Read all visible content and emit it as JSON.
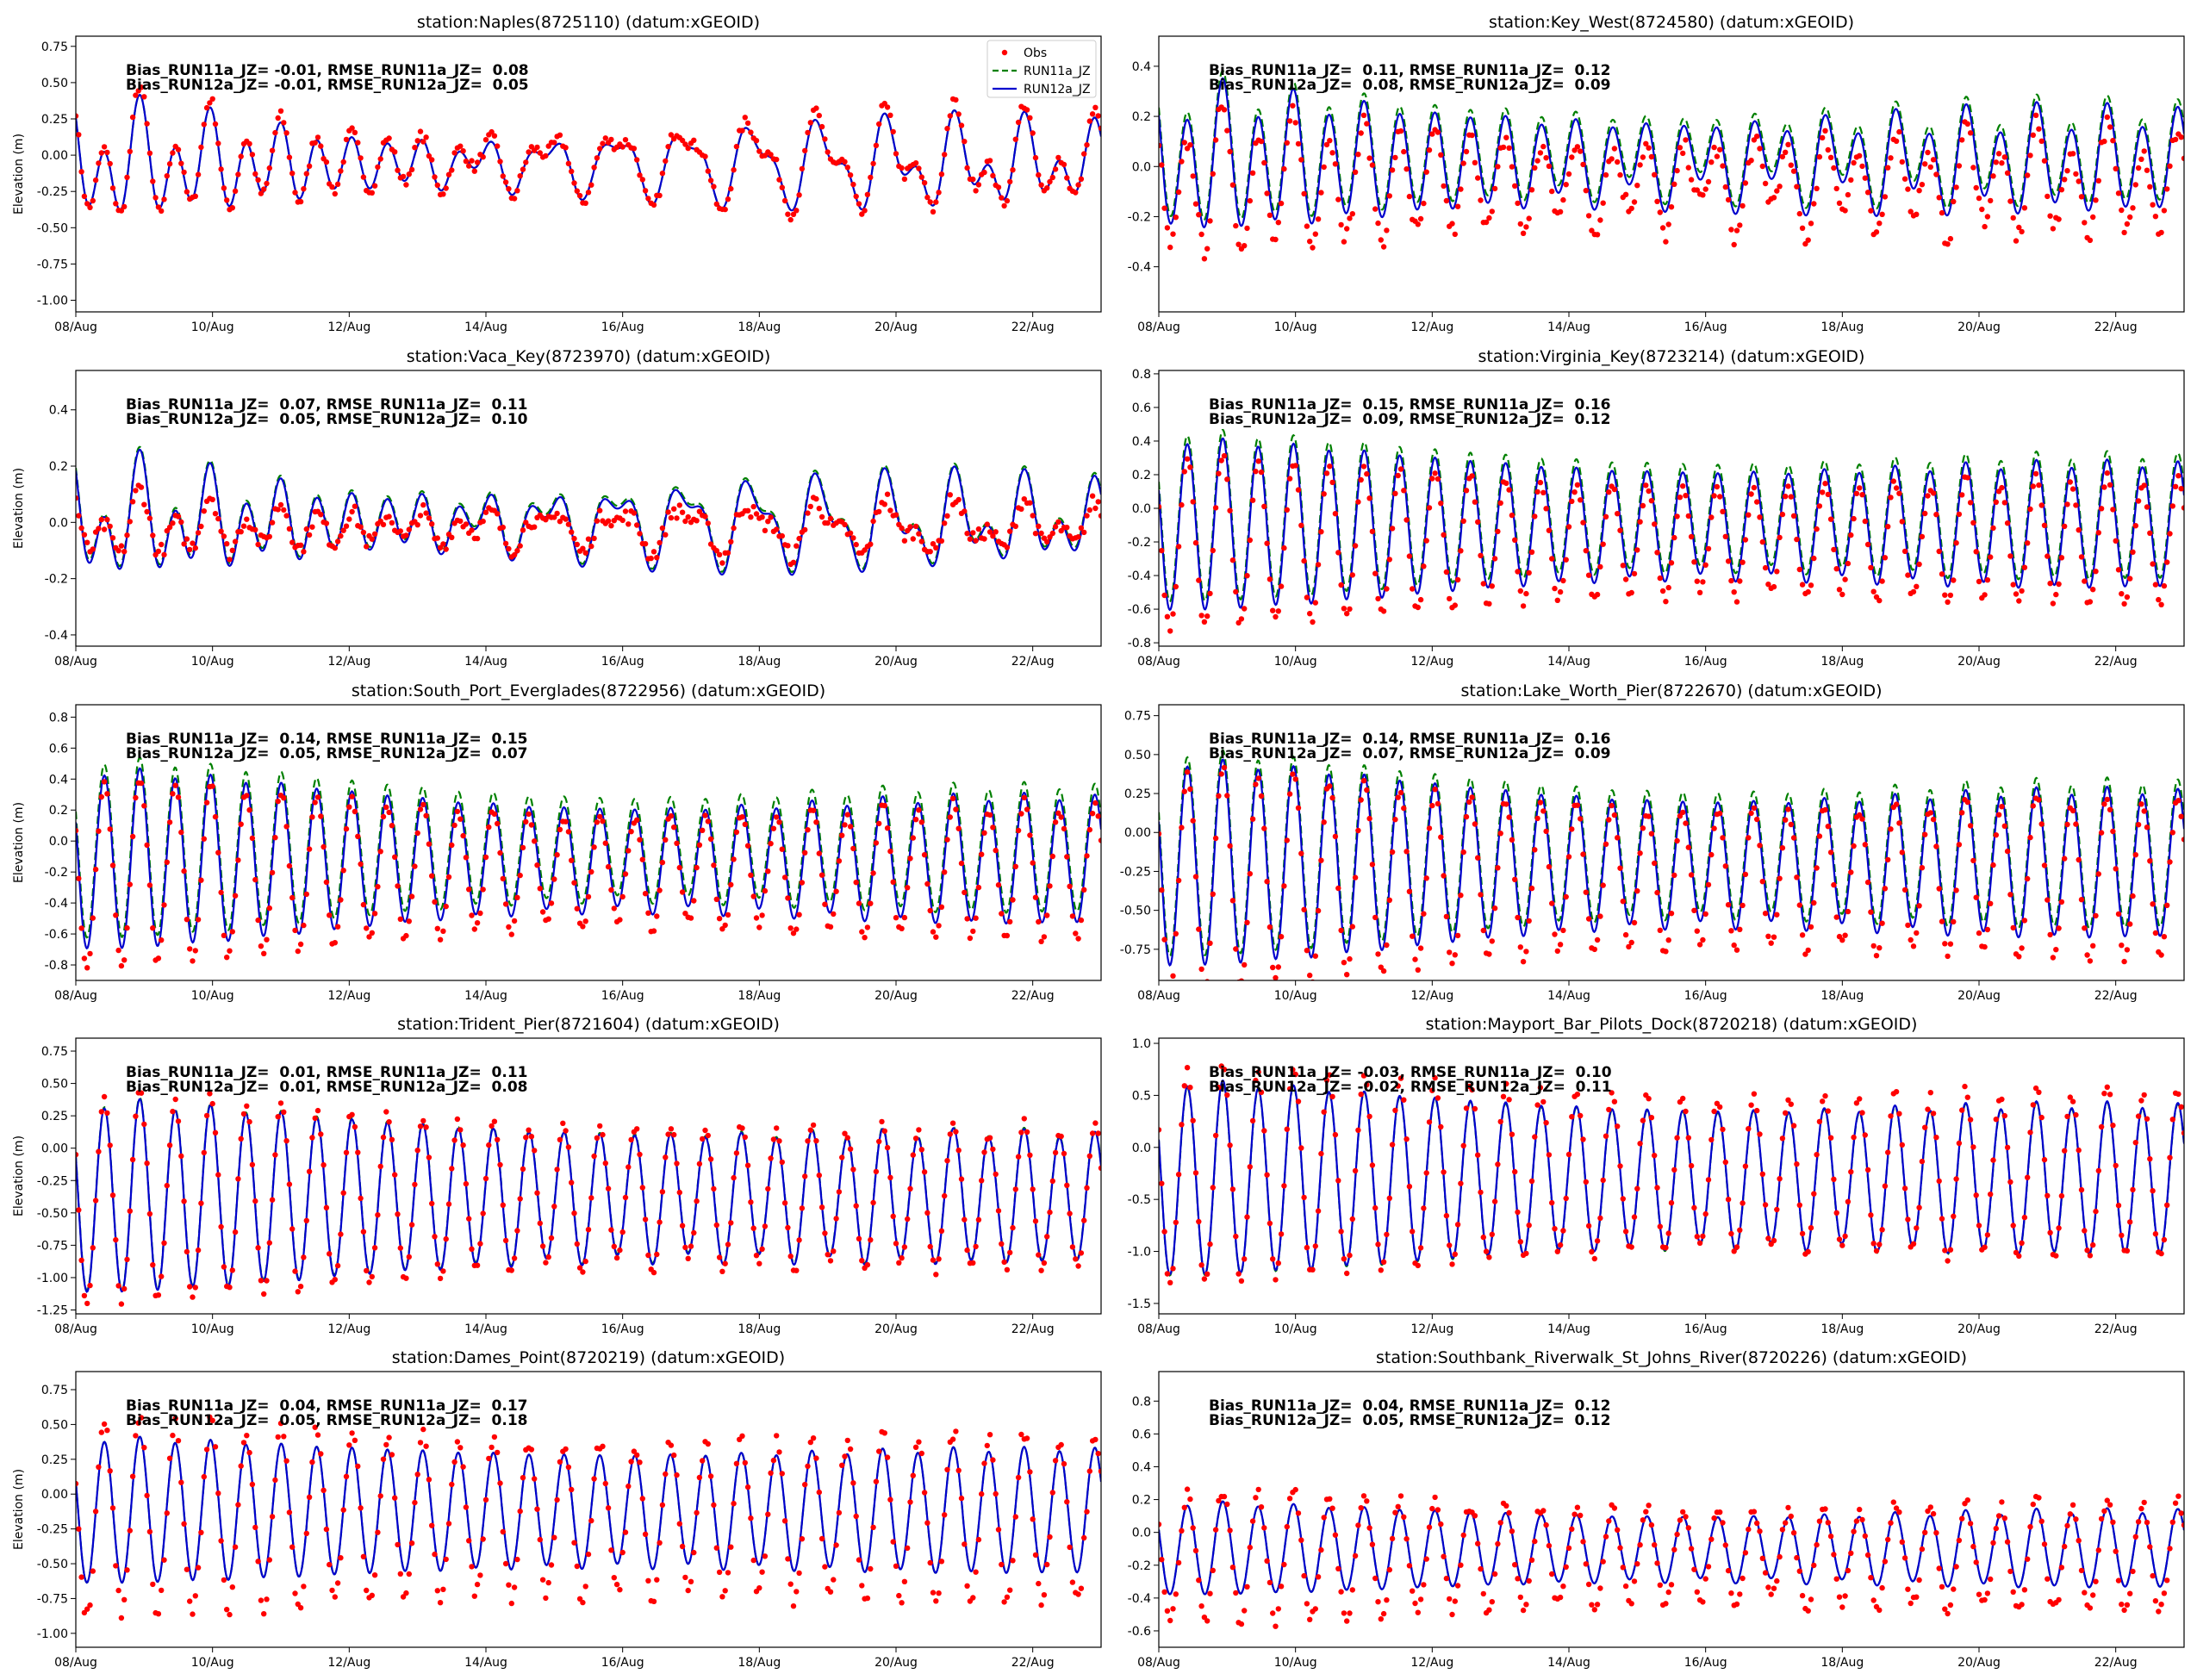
{
  "colors": {
    "obs": "#ff0000",
    "run11a": "#008000",
    "run12a": "#0000cd"
  },
  "legend": {
    "placement": "top-right",
    "entries": [
      "Obs",
      "RUN11a_JZ",
      "RUN12a_JZ"
    ]
  },
  "chart_data": [
    {
      "type": "line",
      "title": "station:Naples(8725110) (datum:xGEOID)",
      "ylabel": "Elevation (m)",
      "ylim": [
        -1.08,
        0.82
      ],
      "yticks": [
        "0.75",
        "0.50",
        "0.25",
        "0.00",
        "-0.25",
        "-0.50",
        "-0.75",
        "-1.00"
      ],
      "xticks": [
        "08/Aug",
        "10/Aug",
        "12/Aug",
        "14/Aug",
        "16/Aug",
        "18/Aug",
        "20/Aug",
        "22/Aug"
      ],
      "x_range_days": [
        0,
        15
      ],
      "stats": [
        "Bias_RUN11a_JZ= -0.01, RMSE_RUN11a_JZ=  0.08",
        "Bias_RUN12a_JZ= -0.01, RMSE_RUN12a_JZ=  0.05"
      ],
      "series": [
        {
          "name": "Obs",
          "style": "dots",
          "offset": 0.0,
          "amp_scale": 1.12,
          "noise": 0.04
        },
        {
          "name": "RUN11a_JZ",
          "style": "dashed",
          "offset": -0.01,
          "amp_scale": 1.0
        },
        {
          "name": "RUN12a_JZ",
          "style": "solid",
          "offset": -0.01,
          "amp_scale": 1.0
        }
      ],
      "signal": {
        "mean": -0.05,
        "semi_amp_start": 0.22,
        "semi_amp_end": 0.1,
        "semi_amp_mod": 0.08,
        "diurnal": 0.28,
        "diurnal_end": 0.22
      }
    },
    {
      "type": "line",
      "title": "station:Key_West(8724580) (datum:xGEOID)",
      "ylabel": "",
      "ylim": [
        -0.58,
        0.52
      ],
      "yticks": [
        "0.4",
        "0.2",
        "0.0",
        "-0.2",
        "-0.4"
      ],
      "xticks": [
        "08/Aug",
        "10/Aug",
        "12/Aug",
        "14/Aug",
        "16/Aug",
        "18/Aug",
        "20/Aug",
        "22/Aug"
      ],
      "x_range_days": [
        0,
        15
      ],
      "stats": [
        "Bias_RUN11a_JZ=  0.11, RMSE_RUN11a_JZ=  0.12",
        "Bias_RUN12a_JZ=  0.08, RMSE_RUN12a_JZ=  0.09"
      ],
      "series": [
        {
          "name": "Obs",
          "style": "dots",
          "offset": -0.09,
          "amp_scale": 1.0,
          "noise": 0.04
        },
        {
          "name": "RUN11a_JZ",
          "style": "dashed",
          "offset": 0.03,
          "amp_scale": 1.0
        },
        {
          "name": "RUN12a_JZ",
          "style": "solid",
          "offset": 0.0,
          "amp_scale": 1.0
        }
      ],
      "signal": {
        "mean": 0.02,
        "semi_amp_start": 0.22,
        "semi_amp_end": 0.14,
        "semi_amp_mod": 0.04,
        "diurnal": 0.12,
        "diurnal_end": 0.06
      }
    },
    {
      "type": "line",
      "title": "station:Vaca_Key(8723970) (datum:xGEOID)",
      "ylabel": "Elevation (m)",
      "ylim": [
        -0.44,
        0.54
      ],
      "yticks": [
        "0.4",
        "0.2",
        "0.0",
        "-0.2",
        "-0.4"
      ],
      "xticks": [
        "08/Aug",
        "10/Aug",
        "12/Aug",
        "14/Aug",
        "16/Aug",
        "18/Aug",
        "20/Aug",
        "22/Aug"
      ],
      "x_range_days": [
        0,
        15
      ],
      "stats": [
        "Bias_RUN11a_JZ=  0.07, RMSE_RUN11a_JZ=  0.11",
        "Bias_RUN12a_JZ=  0.05, RMSE_RUN12a_JZ=  0.10"
      ],
      "series": [
        {
          "name": "Obs",
          "style": "dots",
          "offset": -0.02,
          "amp_scale": 0.55,
          "noise": 0.03
        },
        {
          "name": "RUN11a_JZ",
          "style": "dashed",
          "offset": 0.01,
          "amp_scale": 1.0
        },
        {
          "name": "RUN12a_JZ",
          "style": "solid",
          "offset": 0.0,
          "amp_scale": 1.0
        }
      ],
      "signal": {
        "mean": 0.0,
        "semi_amp_start": 0.12,
        "semi_amp_end": 0.06,
        "semi_amp_mod": 0.03,
        "diurnal": 0.17,
        "diurnal_end": 0.12
      }
    },
    {
      "type": "line",
      "title": "station:Virginia_Key(8723214) (datum:xGEOID)",
      "ylabel": "",
      "ylim": [
        -0.82,
        0.82
      ],
      "yticks": [
        "0.8",
        "0.6",
        "0.4",
        "0.2",
        "0.0",
        "-0.2",
        "-0.4",
        "-0.6",
        "-0.8"
      ],
      "xticks": [
        "08/Aug",
        "10/Aug",
        "12/Aug",
        "14/Aug",
        "16/Aug",
        "18/Aug",
        "20/Aug",
        "22/Aug"
      ],
      "x_range_days": [
        0,
        15
      ],
      "stats": [
        "Bias_RUN11a_JZ=  0.15, RMSE_RUN11a_JZ=  0.16",
        "Bias_RUN12a_JZ=  0.09, RMSE_RUN12a_JZ=  0.12"
      ],
      "series": [
        {
          "name": "Obs",
          "style": "dots",
          "offset": -0.1,
          "amp_scale": 1.0,
          "noise": 0.03
        },
        {
          "name": "RUN11a_JZ",
          "style": "dashed",
          "offset": 0.05,
          "amp_scale": 1.0
        },
        {
          "name": "RUN12a_JZ",
          "style": "solid",
          "offset": 0.0,
          "amp_scale": 1.0
        }
      ],
      "signal": {
        "mean": -0.1,
        "semi_amp_start": 0.45,
        "semi_amp_end": 0.3,
        "semi_amp_mod": 0.06,
        "diurnal": 0.03,
        "diurnal_end": 0.03
      }
    },
    {
      "type": "line",
      "title": "station:South_Port_Everglades(8722956) (datum:xGEOID)",
      "ylabel": "Elevation (m)",
      "ylim": [
        -0.9,
        0.88
      ],
      "yticks": [
        "0.8",
        "0.6",
        "0.4",
        "0.2",
        "0.0",
        "-0.2",
        "-0.4",
        "-0.6",
        "-0.8"
      ],
      "xticks": [
        "08/Aug",
        "10/Aug",
        "12/Aug",
        "14/Aug",
        "16/Aug",
        "18/Aug",
        "20/Aug",
        "22/Aug"
      ],
      "x_range_days": [
        0,
        15
      ],
      "stats": [
        "Bias_RUN11a_JZ=  0.14, RMSE_RUN11a_JZ=  0.15",
        "Bias_RUN12a_JZ=  0.05, RMSE_RUN12a_JZ=  0.07"
      ],
      "series": [
        {
          "name": "Obs",
          "style": "dots",
          "offset": -0.08,
          "amp_scale": 1.05,
          "noise": 0.03
        },
        {
          "name": "RUN11a_JZ",
          "style": "dashed",
          "offset": 0.07,
          "amp_scale": 1.0
        },
        {
          "name": "RUN12a_JZ",
          "style": "solid",
          "offset": 0.0,
          "amp_scale": 1.0
        }
      ],
      "signal": {
        "mean": -0.12,
        "semi_amp_start": 0.5,
        "semi_amp_end": 0.32,
        "semi_amp_mod": 0.08,
        "diurnal": 0.04,
        "diurnal_end": 0.03
      }
    },
    {
      "type": "line",
      "title": "station:Lake_Worth_Pier(8722670) (datum:xGEOID)",
      "ylabel": "",
      "ylim": [
        -0.95,
        0.82
      ],
      "yticks": [
        "0.75",
        "0.50",
        "0.25",
        "0.00",
        "-0.25",
        "-0.50",
        "-0.75"
      ],
      "xticks": [
        "08/Aug",
        "10/Aug",
        "12/Aug",
        "14/Aug",
        "16/Aug",
        "18/Aug",
        "20/Aug",
        "22/Aug"
      ],
      "x_range_days": [
        0,
        15
      ],
      "stats": [
        "Bias_RUN11a_JZ=  0.14, RMSE_RUN11a_JZ=  0.16",
        "Bias_RUN12a_JZ=  0.07, RMSE_RUN12a_JZ=  0.09"
      ],
      "series": [
        {
          "name": "Obs",
          "style": "dots",
          "offset": -0.1,
          "amp_scale": 1.08,
          "noise": 0.03
        },
        {
          "name": "RUN11a_JZ",
          "style": "dashed",
          "offset": 0.06,
          "amp_scale": 1.0
        },
        {
          "name": "RUN12a_JZ",
          "style": "solid",
          "offset": 0.0,
          "amp_scale": 1.0
        }
      ],
      "signal": {
        "mean": -0.2,
        "semi_amp_start": 0.58,
        "semi_amp_end": 0.38,
        "semi_amp_mod": 0.08,
        "diurnal": 0.04,
        "diurnal_end": 0.03
      }
    },
    {
      "type": "line",
      "title": "station:Trident_Pier(8721604) (datum:xGEOID)",
      "ylabel": "Elevation (m)",
      "ylim": [
        -1.28,
        0.85
      ],
      "yticks": [
        "0.75",
        "0.50",
        "0.25",
        "0.00",
        "-0.25",
        "-0.50",
        "-0.75",
        "-1.00",
        "-1.25"
      ],
      "xticks": [
        "08/Aug",
        "10/Aug",
        "12/Aug",
        "14/Aug",
        "16/Aug",
        "18/Aug",
        "20/Aug",
        "22/Aug"
      ],
      "x_range_days": [
        0,
        15
      ],
      "stats": [
        "Bias_RUN11a_JZ=  0.01, RMSE_RUN11a_JZ=  0.11",
        "Bias_RUN12a_JZ=  0.01, RMSE_RUN12a_JZ=  0.08"
      ],
      "series": [
        {
          "name": "Obs",
          "style": "dots",
          "offset": 0.0,
          "amp_scale": 1.1,
          "noise": 0.04
        },
        {
          "name": "RUN11a_JZ",
          "style": "dashed",
          "offset": 0.01,
          "amp_scale": 1.0
        },
        {
          "name": "RUN12a_JZ",
          "style": "solid",
          "offset": 0.0,
          "amp_scale": 1.0
        }
      ],
      "signal": {
        "mean": -0.38,
        "semi_amp_start": 0.68,
        "semi_amp_end": 0.42,
        "semi_amp_mod": 0.06,
        "diurnal": 0.06,
        "diurnal_end": 0.04
      }
    },
    {
      "type": "line",
      "title": "station:Mayport_Bar_Pilots_Dock(8720218) (datum:xGEOID)",
      "ylabel": "",
      "ylim": [
        -1.6,
        1.05
      ],
      "yticks": [
        "1.0",
        "0.5",
        "0.0",
        "-0.5",
        "-1.0",
        "-1.5"
      ],
      "xticks": [
        "08/Aug",
        "10/Aug",
        "12/Aug",
        "14/Aug",
        "16/Aug",
        "18/Aug",
        "20/Aug",
        "22/Aug"
      ],
      "x_range_days": [
        0,
        15
      ],
      "stats": [
        "Bias_RUN11a_JZ= -0.03, RMSE_RUN11a_JZ=  0.10",
        "Bias_RUN12a_JZ= -0.02, RMSE_RUN12a_JZ=  0.11"
      ],
      "series": [
        {
          "name": "Obs",
          "style": "dots",
          "offset": 0.05,
          "amp_scale": 1.12,
          "noise": 0.05
        },
        {
          "name": "RUN11a_JZ",
          "style": "dashed",
          "offset": -0.01,
          "amp_scale": 1.0
        },
        {
          "name": "RUN12a_JZ",
          "style": "solid",
          "offset": 0.0,
          "amp_scale": 1.0
        }
      ],
      "signal": {
        "mean": -0.3,
        "semi_amp_start": 0.85,
        "semi_amp_end": 0.62,
        "semi_amp_mod": 0.08,
        "diurnal": 0.05,
        "diurnal_end": 0.04
      }
    },
    {
      "type": "line",
      "title": "station:Dames_Point(8720219) (datum:xGEOID)",
      "ylabel": "Elevation (m)",
      "ylim": [
        -1.1,
        0.88
      ],
      "yticks": [
        "0.75",
        "0.50",
        "0.25",
        "0.00",
        "-0.25",
        "-0.50",
        "-0.75",
        "-1.00"
      ],
      "xticks": [
        "08/Aug",
        "10/Aug",
        "12/Aug",
        "14/Aug",
        "16/Aug",
        "18/Aug",
        "20/Aug",
        "22/Aug"
      ],
      "x_range_days": [
        0,
        15
      ],
      "stats": [
        "Bias_RUN11a_JZ=  0.04, RMSE_RUN11a_JZ=  0.17",
        "Bias_RUN12a_JZ=  0.05, RMSE_RUN12a_JZ=  0.18"
      ],
      "series": [
        {
          "name": "Obs",
          "style": "dots",
          "offset": -0.05,
          "amp_scale": 1.35,
          "noise": 0.06
        },
        {
          "name": "RUN11a_JZ",
          "style": "dashed",
          "offset": 0.0,
          "amp_scale": 1.0
        },
        {
          "name": "RUN12a_JZ",
          "style": "solid",
          "offset": 0.0,
          "amp_scale": 1.0
        }
      ],
      "signal": {
        "mean": -0.12,
        "semi_amp_start": 0.48,
        "semi_amp_end": 0.4,
        "semi_amp_mod": 0.04,
        "diurnal": 0.03,
        "diurnal_end": 0.02
      }
    },
    {
      "type": "line",
      "title": "station:Southbank_Riverwalk_St_Johns_River(8720226) (datum:xGEOID)",
      "ylabel": "",
      "ylim": [
        -0.7,
        0.98
      ],
      "yticks": [
        "0.8",
        "0.6",
        "0.4",
        "0.2",
        "0.0",
        "-0.2",
        "-0.4",
        "-0.6"
      ],
      "xticks": [
        "08/Aug",
        "10/Aug",
        "12/Aug",
        "14/Aug",
        "16/Aug",
        "18/Aug",
        "20/Aug",
        "22/Aug"
      ],
      "x_range_days": [
        0,
        15
      ],
      "stats": [
        "Bias_RUN11a_JZ=  0.04, RMSE_RUN11a_JZ=  0.12",
        "Bias_RUN12a_JZ=  0.05, RMSE_RUN12a_JZ=  0.12"
      ],
      "series": [
        {
          "name": "Obs",
          "style": "dots",
          "offset": -0.05,
          "amp_scale": 1.45,
          "noise": 0.04
        },
        {
          "name": "RUN11a_JZ",
          "style": "dashed",
          "offset": 0.0,
          "amp_scale": 1.0
        },
        {
          "name": "RUN12a_JZ",
          "style": "solid",
          "offset": 0.0,
          "amp_scale": 1.0
        }
      ],
      "signal": {
        "mean": -0.1,
        "semi_amp_start": 0.25,
        "semi_amp_end": 0.2,
        "semi_amp_mod": 0.03,
        "diurnal": 0.02,
        "diurnal_end": 0.02
      }
    }
  ]
}
